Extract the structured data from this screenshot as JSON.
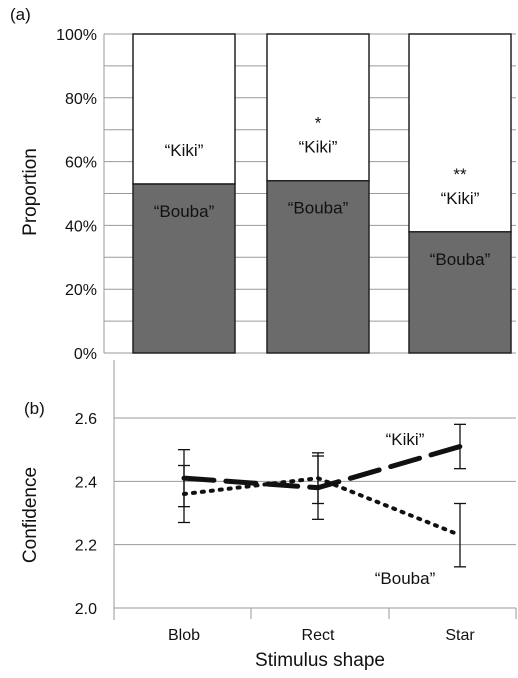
{
  "chart_data": [
    {
      "panel_label": "(a)",
      "type": "bar",
      "stacked": true,
      "categories": [
        "Blob",
        "Rect",
        "Star"
      ],
      "ylabel": "Proportion",
      "ylim": [
        0,
        100
      ],
      "yticks": [
        "0%",
        "20%",
        "40%",
        "60%",
        "80%",
        "100%"
      ],
      "grid": true,
      "series": [
        {
          "name": "“Bouba”",
          "color": "#6b6b6b",
          "values": [
            53,
            54,
            38
          ]
        },
        {
          "name": "“Kiki”",
          "color": "#ffffff",
          "values": [
            47,
            46,
            62
          ]
        }
      ],
      "significance": [
        "",
        "*",
        "**"
      ]
    },
    {
      "panel_label": "(b)",
      "type": "line",
      "categories": [
        "Blob",
        "Rect",
        "Star"
      ],
      "xlabel": "Stimulus shape",
      "ylabel": "Confidence",
      "ylim": [
        2.0,
        2.6
      ],
      "yticks": [
        "2.0",
        "2.2",
        "2.4",
        "2.6"
      ],
      "grid": true,
      "series": [
        {
          "name": "“Kiki”",
          "style": "dashed",
          "values": [
            2.41,
            2.38,
            2.51
          ],
          "error": [
            0.09,
            0.1,
            0.07
          ]
        },
        {
          "name": "“Bouba”",
          "style": "dotted",
          "values": [
            2.36,
            2.41,
            2.23
          ],
          "error": [
            0.09,
            0.08,
            0.1
          ]
        }
      ]
    }
  ]
}
